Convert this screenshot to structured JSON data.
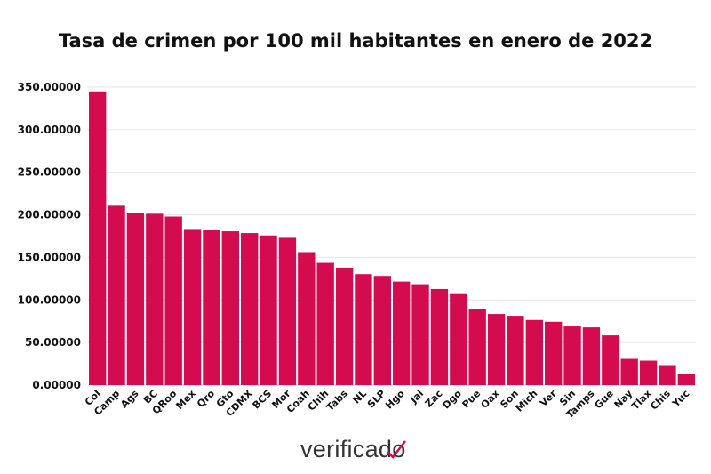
{
  "chart_data": {
    "type": "bar",
    "title": "Tasa de crimen por 100 mil habitantes en enero de 2022",
    "xlabel": "",
    "ylabel": "",
    "ylim": [
      0,
      350
    ],
    "yticks": [
      0,
      50,
      100,
      150,
      200,
      250,
      300,
      350
    ],
    "ytick_labels": [
      "0.00000",
      "50.00000",
      "100.00000",
      "150.00000",
      "200.00000",
      "250.00000",
      "300.00000",
      "350.00000"
    ],
    "grid": true,
    "color": "#d40c4f",
    "categories": [
      "Col",
      "Camp",
      "Ags",
      "BC",
      "QRoo",
      "Mex",
      "Qro",
      "Gto",
      "CDMX",
      "BCS",
      "Mor",
      "Coah",
      "Chih",
      "Tabs",
      "NL",
      "SLP",
      "Hgo",
      "Jal",
      "Zac",
      "Dgo",
      "Pue",
      "Oax",
      "Son",
      "Mich",
      "Ver",
      "Sin",
      "Tamps",
      "Gue",
      "Nay",
      "Tlax",
      "Chis",
      "Yuc"
    ],
    "values": [
      345.0,
      210.7,
      202.3,
      201.3,
      198.0,
      182.4,
      181.8,
      180.7,
      178.6,
      175.8,
      173.0,
      156.2,
      143.6,
      138.0,
      130.4,
      128.3,
      121.6,
      118.5,
      112.9,
      106.9,
      89.1,
      83.5,
      81.4,
      76.5,
      74.4,
      68.9,
      67.8,
      58.4,
      30.8,
      28.7,
      23.5,
      12.6
    ]
  },
  "logo": {
    "text": "verificado"
  }
}
